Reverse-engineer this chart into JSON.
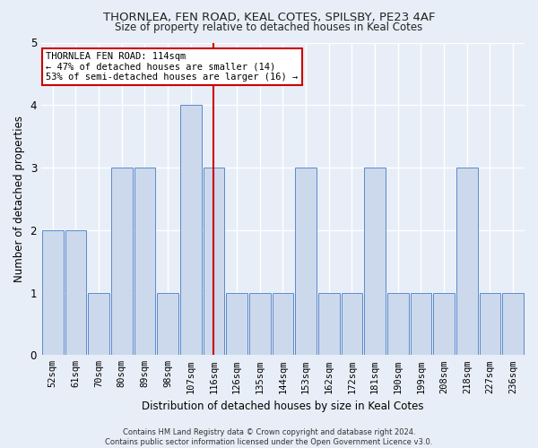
{
  "title_line1": "THORNLEA, FEN ROAD, KEAL COTES, SPILSBY, PE23 4AF",
  "title_line2": "Size of property relative to detached houses in Keal Cotes",
  "xlabel": "Distribution of detached houses by size in Keal Cotes",
  "ylabel": "Number of detached properties",
  "categories": [
    "52sqm",
    "61sqm",
    "70sqm",
    "80sqm",
    "89sqm",
    "98sqm",
    "107sqm",
    "116sqm",
    "126sqm",
    "135sqm",
    "144sqm",
    "153sqm",
    "162sqm",
    "172sqm",
    "181sqm",
    "190sqm",
    "199sqm",
    "208sqm",
    "218sqm",
    "227sqm",
    "236sqm"
  ],
  "values": [
    2,
    2,
    1,
    3,
    3,
    1,
    4,
    3,
    1,
    1,
    1,
    3,
    1,
    1,
    3,
    1,
    1,
    1,
    3,
    1,
    1
  ],
  "bar_color": "#ccd9ed",
  "bar_edge_color": "#5b8ac9",
  "highlight_index": 7,
  "highlight_line_color": "#cc0000",
  "ylim": [
    0,
    5
  ],
  "yticks": [
    0,
    1,
    2,
    3,
    4,
    5
  ],
  "annotation_text": "THORNLEA FEN ROAD: 114sqm\n← 47% of detached houses are smaller (14)\n53% of semi-detached houses are larger (16) →",
  "annotation_box_color": "#ffffff",
  "annotation_box_edge": "#cc0000",
  "footnote": "Contains HM Land Registry data © Crown copyright and database right 2024.\nContains public sector information licensed under the Open Government Licence v3.0.",
  "bg_color": "#e8eef7"
}
